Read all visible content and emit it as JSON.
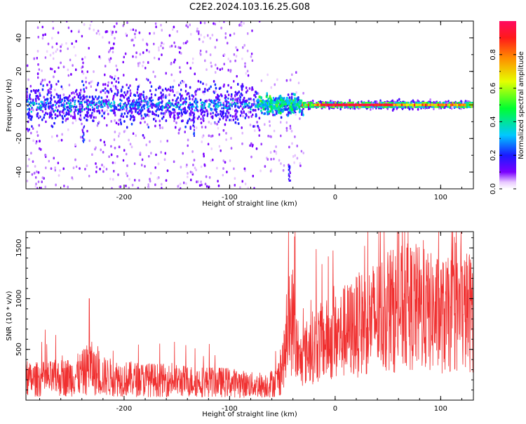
{
  "title": "C2E2.2024.103.16.25.G08",
  "chart_data": [
    {
      "type": "heatmap",
      "xlabel": "Height of straight line (km)",
      "ylabel": "Frequency (Hz)",
      "xlim": [
        -293,
        131
      ],
      "ylim": [
        -50,
        50
      ],
      "xticks": [
        -200,
        -100,
        0,
        100
      ],
      "yticks": [
        -40,
        -20,
        0,
        20,
        40
      ],
      "colorbar": {
        "label": "Normalized spectral amplitude",
        "range": [
          0,
          1
        ],
        "ticks": [
          "0.0",
          "0.2",
          "0.4",
          "0.6",
          "0.8"
        ],
        "tick_values": [
          0.0,
          0.2,
          0.4,
          0.6,
          0.8
        ]
      },
      "grid": false
    },
    {
      "type": "line",
      "color": "#f03030",
      "xlabel": "Height of straight line (km)",
      "ylabel": "SNR (10 * v/v)",
      "xlim": [
        -293,
        131
      ],
      "ylim": [
        0,
        1660
      ],
      "xticks": [
        -200,
        -100,
        0,
        100
      ],
      "yticks": [
        500,
        1000,
        1500
      ],
      "envelope": [
        {
          "x": -293,
          "y": 200
        },
        {
          "x": -270,
          "y": 210
        },
        {
          "x": -250,
          "y": 230
        },
        {
          "x": -240,
          "y": 260
        },
        {
          "x": -232,
          "y": 330
        },
        {
          "x": -225,
          "y": 240
        },
        {
          "x": -200,
          "y": 210
        },
        {
          "x": -150,
          "y": 190
        },
        {
          "x": -100,
          "y": 175
        },
        {
          "x": -70,
          "y": 140
        },
        {
          "x": -55,
          "y": 180
        },
        {
          "x": -48,
          "y": 420
        },
        {
          "x": -44,
          "y": 700
        },
        {
          "x": -40,
          "y": 800
        },
        {
          "x": -35,
          "y": 360
        },
        {
          "x": -25,
          "y": 500
        },
        {
          "x": -15,
          "y": 560
        },
        {
          "x": 0,
          "y": 620
        },
        {
          "x": 15,
          "y": 700
        },
        {
          "x": 30,
          "y": 780
        },
        {
          "x": 45,
          "y": 850
        },
        {
          "x": 60,
          "y": 900
        },
        {
          "x": 75,
          "y": 920
        },
        {
          "x": 90,
          "y": 860
        },
        {
          "x": 105,
          "y": 820
        },
        {
          "x": 120,
          "y": 870
        },
        {
          "x": 131,
          "y": 880
        }
      ],
      "peaks": [
        {
          "x": -233,
          "y": 1000
        },
        {
          "x": -38,
          "y": 1660
        },
        {
          "x": 28,
          "y": 1520
        },
        {
          "x": 68,
          "y": 1500
        },
        {
          "x": 130,
          "y": 1250
        }
      ]
    }
  ]
}
